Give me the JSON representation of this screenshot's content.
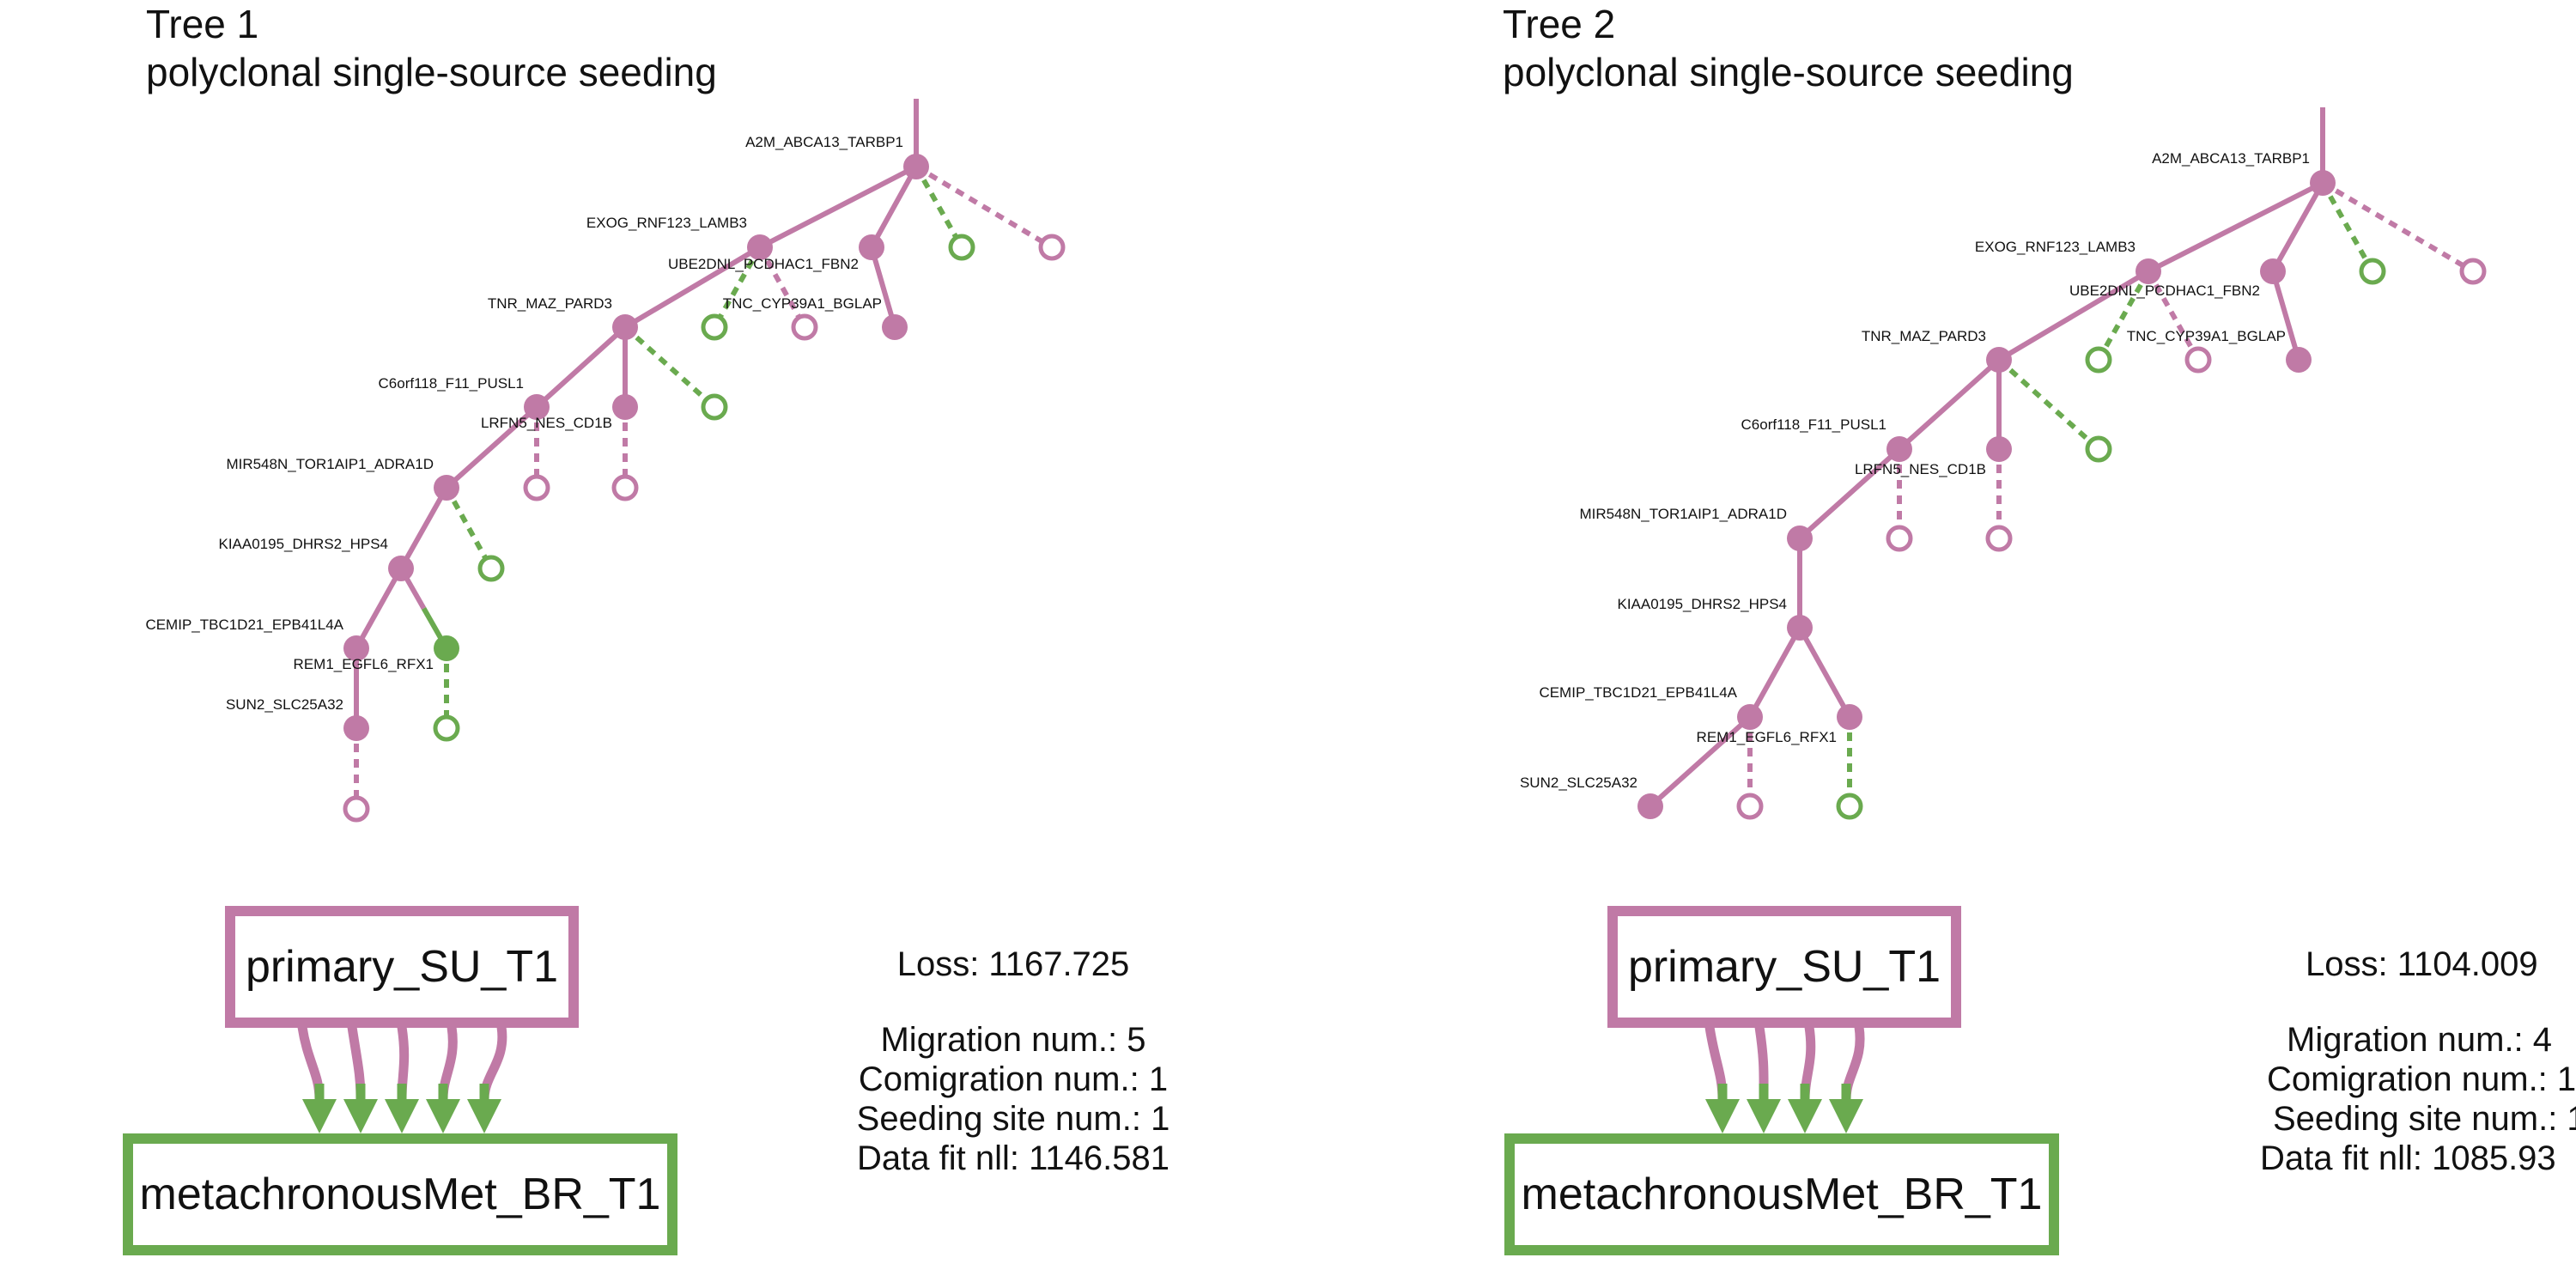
{
  "colors": {
    "primary": "#c07aa6",
    "met": "#6aaa4f",
    "arrow_fill": "#6aaa4f"
  },
  "trees": [
    {
      "title": "Tree 1",
      "subtitle": "polyclonal single-source seeding",
      "nodes": [
        {
          "id": "A2M_ABCA13_TARBP1",
          "label": "A2M_ABCA13_TARBP1",
          "color": "primary",
          "type": "filled"
        },
        {
          "id": "EXOG_RNF123_LAMB3",
          "label": "EXOG_RNF123_LAMB3",
          "color": "primary",
          "type": "filled"
        },
        {
          "id": "UBE2DNL_PCDHAC1_FBN2",
          "label": "UBE2DNL_PCDHAC1_FBN2",
          "color": "primary",
          "type": "filled"
        },
        {
          "id": "TNC_CYP39A1_BGLAP",
          "label": "TNC_CYP39A1_BGLAP",
          "color": "primary",
          "type": "filled"
        },
        {
          "id": "TNR_MAZ_PARD3",
          "label": "TNR_MAZ_PARD3",
          "color": "primary",
          "type": "filled"
        },
        {
          "id": "C6orf118_F11_PUSL1",
          "label": "C6orf118_F11_PUSL1",
          "color": "primary",
          "type": "filled"
        },
        {
          "id": "LRFN5_NES_CD1B",
          "label": "LRFN5_NES_CD1B",
          "color": "primary",
          "type": "filled"
        },
        {
          "id": "MIR548N_TOR1AIP1_ADRA1D",
          "label": "MIR548N_TOR1AIP1_ADRA1D",
          "color": "primary",
          "type": "filled"
        },
        {
          "id": "KIAA0195_DHRS2_HPS4",
          "label": "KIAA0195_DHRS2_HPS4",
          "color": "primary",
          "type": "filled"
        },
        {
          "id": "CEMIP_TBC1D21_EPB41L4A",
          "label": "CEMIP_TBC1D21_EPB41L4A",
          "color": "primary",
          "type": "filled"
        },
        {
          "id": "REM1_EGFL6_RFX1",
          "label": "REM1_EGFL6_RFX1",
          "color": "met",
          "type": "filled"
        },
        {
          "id": "SUN2_SLC25A32",
          "label": "SUN2_SLC25A32",
          "color": "primary",
          "type": "filled"
        },
        {
          "id": "L1",
          "label": "",
          "color": "met",
          "type": "open"
        },
        {
          "id": "L2",
          "label": "",
          "color": "primary",
          "type": "open"
        },
        {
          "id": "L3",
          "label": "",
          "color": "met",
          "type": "open"
        },
        {
          "id": "L4",
          "label": "",
          "color": "primary",
          "type": "open"
        },
        {
          "id": "L5",
          "label": "",
          "color": "met",
          "type": "open"
        },
        {
          "id": "L6",
          "label": "",
          "color": "primary",
          "type": "open"
        },
        {
          "id": "L7",
          "label": "",
          "color": "primary",
          "type": "open"
        },
        {
          "id": "L8",
          "label": "",
          "color": "met",
          "type": "open"
        },
        {
          "id": "L9",
          "label": "",
          "color": "met",
          "type": "open"
        },
        {
          "id": "L10",
          "label": "",
          "color": "primary",
          "type": "open"
        }
      ],
      "edges": [
        {
          "from": "A2M_ABCA13_TARBP1",
          "to": "EXOG_RNF123_LAMB3",
          "style": "solid",
          "color": "primary"
        },
        {
          "from": "A2M_ABCA13_TARBP1",
          "to": "UBE2DNL_PCDHAC1_FBN2",
          "style": "solid",
          "color": "primary"
        },
        {
          "from": "A2M_ABCA13_TARBP1",
          "to": "L1",
          "style": "dashed",
          "color": "met"
        },
        {
          "from": "A2M_ABCA13_TARBP1",
          "to": "L2",
          "style": "dashed",
          "color": "primary"
        },
        {
          "from": "EXOG_RNF123_LAMB3",
          "to": "TNR_MAZ_PARD3",
          "style": "solid",
          "color": "primary"
        },
        {
          "from": "EXOG_RNF123_LAMB3",
          "to": "L3",
          "style": "dashed",
          "color": "met"
        },
        {
          "from": "EXOG_RNF123_LAMB3",
          "to": "L4",
          "style": "dashed",
          "color": "primary"
        },
        {
          "from": "UBE2DNL_PCDHAC1_FBN2",
          "to": "TNC_CYP39A1_BGLAP",
          "style": "solid",
          "color": "primary"
        },
        {
          "from": "TNR_MAZ_PARD3",
          "to": "C6orf118_F11_PUSL1",
          "style": "solid",
          "color": "primary"
        },
        {
          "from": "TNR_MAZ_PARD3",
          "to": "LRFN5_NES_CD1B",
          "style": "solid",
          "color": "primary"
        },
        {
          "from": "TNR_MAZ_PARD3",
          "to": "L5",
          "style": "dashed",
          "color": "met"
        },
        {
          "from": "C6orf118_F11_PUSL1",
          "to": "MIR548N_TOR1AIP1_ADRA1D",
          "style": "solid",
          "color": "primary"
        },
        {
          "from": "C6orf118_F11_PUSL1",
          "to": "L6",
          "style": "dashed",
          "color": "primary"
        },
        {
          "from": "LRFN5_NES_CD1B",
          "to": "L7",
          "style": "dashed",
          "color": "primary"
        },
        {
          "from": "MIR548N_TOR1AIP1_ADRA1D",
          "to": "KIAA0195_DHRS2_HPS4",
          "style": "solid",
          "color": "primary"
        },
        {
          "from": "MIR548N_TOR1AIP1_ADRA1D",
          "to": "L8",
          "style": "dashed",
          "color": "met"
        },
        {
          "from": "KIAA0195_DHRS2_HPS4",
          "to": "CEMIP_TBC1D21_EPB41L4A",
          "style": "solid",
          "color": "primary"
        },
        {
          "from": "KIAA0195_DHRS2_HPS4",
          "to": "REM1_EGFL6_RFX1",
          "style": "solid",
          "color": "primary",
          "color2": "met"
        },
        {
          "from": "CEMIP_TBC1D21_EPB41L4A",
          "to": "SUN2_SLC25A32",
          "style": "solid",
          "color": "primary"
        },
        {
          "from": "REM1_EGFL6_RFX1",
          "to": "L9",
          "style": "dashed",
          "color": "met"
        },
        {
          "from": "SUN2_SLC25A32",
          "to": "L10",
          "style": "dashed",
          "color": "primary"
        }
      ],
      "primary_site": "primary_SU_T1",
      "met_site": "metachronousMet_BR_T1",
      "migration_arrows": 5,
      "stats": {
        "loss": "Loss: 1167.725",
        "migration": "Migration num.: 5",
        "comigration": "Comigration num.: 1",
        "seeding": "Seeding site num.: 1",
        "datafit": "Data fit nll: 1146.581"
      }
    },
    {
      "title": "Tree 2",
      "subtitle": "polyclonal single-source seeding",
      "nodes": [
        {
          "id": "A2M_ABCA13_TARBP1",
          "label": "A2M_ABCA13_TARBP1",
          "color": "primary",
          "type": "filled"
        },
        {
          "id": "EXOG_RNF123_LAMB3",
          "label": "EXOG_RNF123_LAMB3",
          "color": "primary",
          "type": "filled"
        },
        {
          "id": "UBE2DNL_PCDHAC1_FBN2",
          "label": "UBE2DNL_PCDHAC1_FBN2",
          "color": "primary",
          "type": "filled"
        },
        {
          "id": "TNC_CYP39A1_BGLAP",
          "label": "TNC_CYP39A1_BGLAP",
          "color": "primary",
          "type": "filled"
        },
        {
          "id": "TNR_MAZ_PARD3",
          "label": "TNR_MAZ_PARD3",
          "color": "primary",
          "type": "filled"
        },
        {
          "id": "C6orf118_F11_PUSL1",
          "label": "C6orf118_F11_PUSL1",
          "color": "primary",
          "type": "filled"
        },
        {
          "id": "LRFN5_NES_CD1B",
          "label": "LRFN5_NES_CD1B",
          "color": "primary",
          "type": "filled"
        },
        {
          "id": "MIR548N_TOR1AIP1_ADRA1D",
          "label": "MIR548N_TOR1AIP1_ADRA1D",
          "color": "primary",
          "type": "filled"
        },
        {
          "id": "KIAA0195_DHRS2_HPS4",
          "label": "KIAA0195_DHRS2_HPS4",
          "color": "primary",
          "type": "filled"
        },
        {
          "id": "CEMIP_TBC1D21_EPB41L4A",
          "label": "CEMIP_TBC1D21_EPB41L4A",
          "color": "primary",
          "type": "filled"
        },
        {
          "id": "REM1_EGFL6_RFX1",
          "label": "REM1_EGFL6_RFX1",
          "color": "primary",
          "type": "filled"
        },
        {
          "id": "SUN2_SLC25A32",
          "label": "SUN2_SLC25A32",
          "color": "primary",
          "type": "filled"
        },
        {
          "id": "L1",
          "label": "",
          "color": "met",
          "type": "open"
        },
        {
          "id": "L2",
          "label": "",
          "color": "primary",
          "type": "open"
        },
        {
          "id": "L3",
          "label": "",
          "color": "met",
          "type": "open"
        },
        {
          "id": "L4",
          "label": "",
          "color": "primary",
          "type": "open"
        },
        {
          "id": "L5",
          "label": "",
          "color": "met",
          "type": "open"
        },
        {
          "id": "L6",
          "label": "",
          "color": "primary",
          "type": "open"
        },
        {
          "id": "L7",
          "label": "",
          "color": "primary",
          "type": "open"
        },
        {
          "id": "L8",
          "label": "",
          "color": "primary",
          "type": "open"
        },
        {
          "id": "L9",
          "label": "",
          "color": "met",
          "type": "open"
        }
      ],
      "edges": [
        {
          "from": "A2M_ABCA13_TARBP1",
          "to": "EXOG_RNF123_LAMB3",
          "style": "solid",
          "color": "primary"
        },
        {
          "from": "A2M_ABCA13_TARBP1",
          "to": "UBE2DNL_PCDHAC1_FBN2",
          "style": "solid",
          "color": "primary"
        },
        {
          "from": "A2M_ABCA13_TARBP1",
          "to": "L1",
          "style": "dashed",
          "color": "met"
        },
        {
          "from": "A2M_ABCA13_TARBP1",
          "to": "L2",
          "style": "dashed",
          "color": "primary"
        },
        {
          "from": "EXOG_RNF123_LAMB3",
          "to": "TNR_MAZ_PARD3",
          "style": "solid",
          "color": "primary"
        },
        {
          "from": "EXOG_RNF123_LAMB3",
          "to": "L3",
          "style": "dashed",
          "color": "met"
        },
        {
          "from": "EXOG_RNF123_LAMB3",
          "to": "L4",
          "style": "dashed",
          "color": "primary"
        },
        {
          "from": "UBE2DNL_PCDHAC1_FBN2",
          "to": "TNC_CYP39A1_BGLAP",
          "style": "solid",
          "color": "primary"
        },
        {
          "from": "TNR_MAZ_PARD3",
          "to": "C6orf118_F11_PUSL1",
          "style": "solid",
          "color": "primary"
        },
        {
          "from": "TNR_MAZ_PARD3",
          "to": "LRFN5_NES_CD1B",
          "style": "solid",
          "color": "primary"
        },
        {
          "from": "TNR_MAZ_PARD3",
          "to": "L5",
          "style": "dashed",
          "color": "met"
        },
        {
          "from": "C6orf118_F11_PUSL1",
          "to": "MIR548N_TOR1AIP1_ADRA1D",
          "style": "solid",
          "color": "primary"
        },
        {
          "from": "C6orf118_F11_PUSL1",
          "to": "L6",
          "style": "dashed",
          "color": "primary"
        },
        {
          "from": "LRFN5_NES_CD1B",
          "to": "L7",
          "style": "dashed",
          "color": "primary"
        },
        {
          "from": "MIR548N_TOR1AIP1_ADRA1D",
          "to": "KIAA0195_DHRS2_HPS4",
          "style": "solid",
          "color": "primary"
        },
        {
          "from": "KIAA0195_DHRS2_HPS4",
          "to": "CEMIP_TBC1D21_EPB41L4A",
          "style": "solid",
          "color": "primary"
        },
        {
          "from": "KIAA0195_DHRS2_HPS4",
          "to": "REM1_EGFL6_RFX1",
          "style": "solid",
          "color": "primary"
        },
        {
          "from": "CEMIP_TBC1D21_EPB41L4A",
          "to": "SUN2_SLC25A32",
          "style": "solid",
          "color": "primary"
        },
        {
          "from": "CEMIP_TBC1D21_EPB41L4A",
          "to": "L8",
          "style": "dashed",
          "color": "primary"
        },
        {
          "from": "REM1_EGFL6_RFX1",
          "to": "L9",
          "style": "dashed",
          "color": "met"
        }
      ],
      "primary_site": "primary_SU_T1",
      "met_site": "metachronousMet_BR_T1",
      "migration_arrows": 4,
      "stats": {
        "loss": "Loss: 1104.009",
        "migration": "Migration num.: 4",
        "comigration": "Comigration num.: 1",
        "seeding": "Seeding site num.: 1",
        "datafit": "Data fit nll: 1085.93"
      }
    }
  ]
}
